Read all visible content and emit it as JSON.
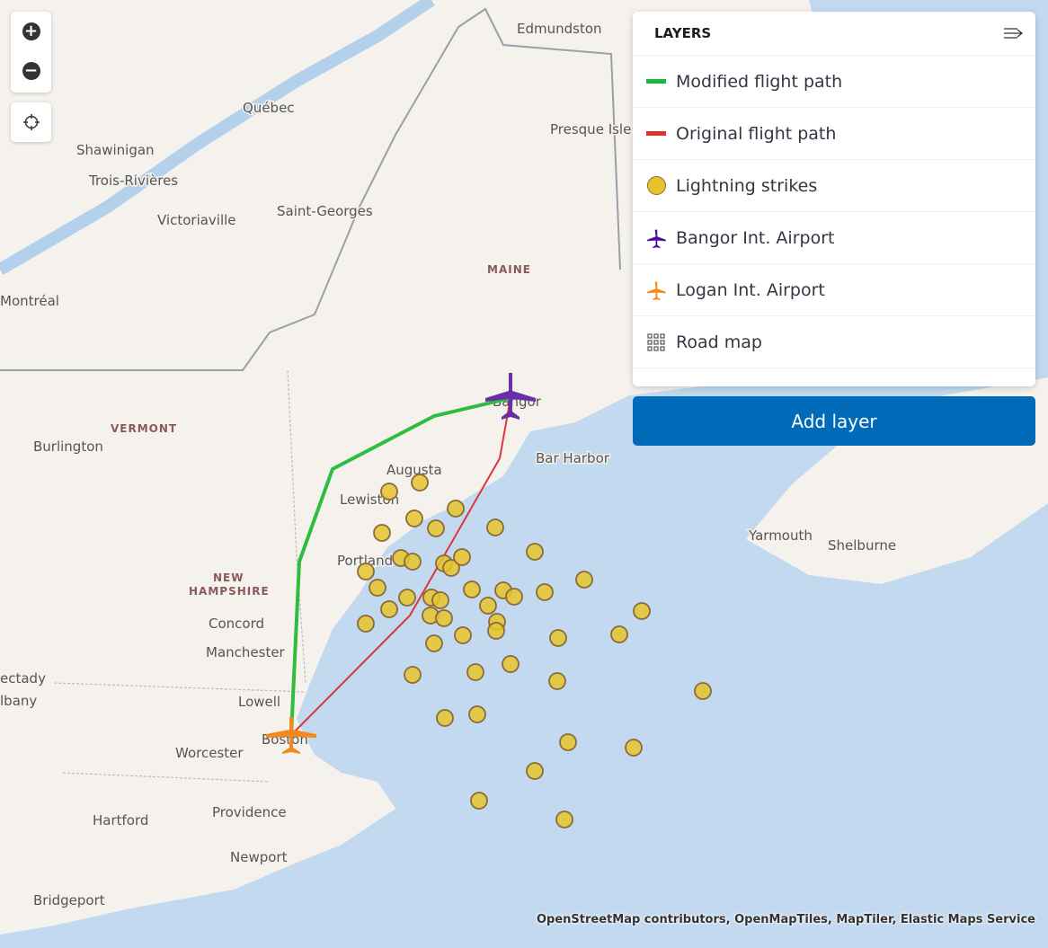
{
  "map": {
    "labels": [
      "Edmundston",
      "Québec",
      "Shawinigan",
      "Trois-Rivières",
      "Victoriaville",
      "Saint-Georges",
      "Presque Isle",
      "Montréal",
      "Burlington",
      "Augusta",
      "Lewiston",
      "Bangor",
      "Bar Harbor",
      "Portland",
      "Concord",
      "Manchester",
      "Lowell",
      "Boston",
      "Worcester",
      "Providence",
      "Hartford",
      "Newport",
      "Bridgeport",
      "Yarmouth",
      "Shelburne",
      "ectady",
      "lbany"
    ],
    "state_labels": [
      "MAINE",
      "VERMONT",
      "NEW",
      "HAMPSHIRE"
    ],
    "colors": {
      "land": "#f5f2ee",
      "water": "#c3d9ef",
      "modified_path": "#2ebd3f",
      "original_path": "#d9373b",
      "strike": "#e6c42c",
      "bangor": "#6a2fa8",
      "logan": "#f08a1e"
    }
  },
  "controls": {
    "zoom_in": "+",
    "zoom_out": "−"
  },
  "layers": {
    "title": "LAYERS",
    "items": [
      {
        "label": "Modified flight path",
        "icon": "line-green"
      },
      {
        "label": "Original flight path",
        "icon": "line-red"
      },
      {
        "label": "Lightning strikes",
        "icon": "circle-yellow"
      },
      {
        "label": "Bangor Int. Airport",
        "icon": "plane-purple"
      },
      {
        "label": "Logan Int. Airport",
        "icon": "plane-orange"
      },
      {
        "label": "Road map",
        "icon": "grid"
      }
    ],
    "add_layer": "Add layer"
  },
  "attribution": "OpenStreetMap contributors, OpenMapTiles, MapTiler, Elastic Maps Service"
}
